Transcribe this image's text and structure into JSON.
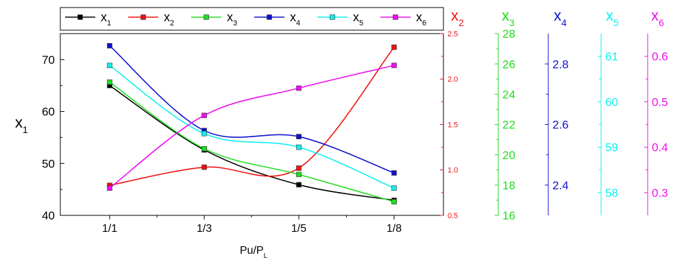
{
  "chart_data": {
    "type": "line",
    "categories": [
      "1/1",
      "1/3",
      "1/5",
      "1/8"
    ],
    "xlabel": {
      "main": "Pu/P",
      "sub": "L"
    },
    "axes": [
      {
        "id": "x1",
        "main": "x",
        "sub": "1",
        "color": "#000000",
        "range": [
          40,
          75
        ],
        "ticks": [
          40,
          50,
          60,
          70
        ],
        "labels": [
          "40",
          "50",
          "60",
          "70"
        ]
      },
      {
        "id": "x2",
        "main": "x",
        "sub": "2",
        "color": "#ee1111",
        "range": [
          0.5,
          2.5
        ],
        "ticks": [
          0.5,
          1.0,
          1.5,
          2.0,
          2.5
        ],
        "labels": [
          "0.5",
          "1.0",
          "1.5",
          "2.0",
          "2.5"
        ]
      },
      {
        "id": "x3",
        "main": "x",
        "sub": "3",
        "color": "#22dd22",
        "range": [
          16,
          28
        ],
        "ticks": [
          16,
          18,
          20,
          22,
          24,
          26,
          28
        ],
        "labels": [
          "16",
          "18",
          "20",
          "22",
          "24",
          "26",
          "28"
        ]
      },
      {
        "id": "x4",
        "main": "x",
        "sub": "4",
        "color": "#1111cc",
        "range": [
          2.3,
          2.9
        ],
        "ticks": [
          2.4,
          2.6,
          2.8
        ],
        "labels": [
          "2.4",
          "2.6",
          "2.8"
        ]
      },
      {
        "id": "x5",
        "main": "x",
        "sub": "5",
        "color": "#11eeee",
        "range": [
          57.5,
          61.5
        ],
        "ticks": [
          58,
          59,
          60,
          61
        ],
        "labels": [
          "58",
          "59",
          "60",
          "61"
        ]
      },
      {
        "id": "x6",
        "main": "x",
        "sub": "6",
        "color": "#ee11ee",
        "range": [
          0.25,
          0.65
        ],
        "ticks": [
          0.3,
          0.4,
          0.5,
          0.6
        ],
        "labels": [
          "0.3",
          "0.4",
          "0.5",
          "0.6"
        ]
      }
    ],
    "series": [
      {
        "axis": "x1",
        "main": "x",
        "sub": "1",
        "color": "#000000",
        "values": [
          65.0,
          52.6,
          45.9,
          42.9
        ]
      },
      {
        "axis": "x2",
        "main": "x",
        "sub": "2",
        "color": "#ee1111",
        "values": [
          0.83,
          1.03,
          1.02,
          2.35
        ]
      },
      {
        "axis": "x3",
        "main": "x",
        "sub": "3",
        "color": "#22dd22",
        "values": [
          24.8,
          20.4,
          18.7,
          16.9
        ]
      },
      {
        "axis": "x4",
        "main": "x",
        "sub": "4",
        "color": "#1111cc",
        "values": [
          2.86,
          2.58,
          2.56,
          2.44
        ]
      },
      {
        "axis": "x5",
        "main": "x",
        "sub": "5",
        "color": "#11eeee",
        "values": [
          60.8,
          59.3,
          59.0,
          58.1
        ]
      },
      {
        "axis": "x6",
        "main": "x",
        "sub": "6",
        "color": "#ee11ee",
        "values": [
          0.31,
          0.47,
          0.53,
          0.58
        ]
      }
    ],
    "legend_position": "top",
    "grid": false
  }
}
